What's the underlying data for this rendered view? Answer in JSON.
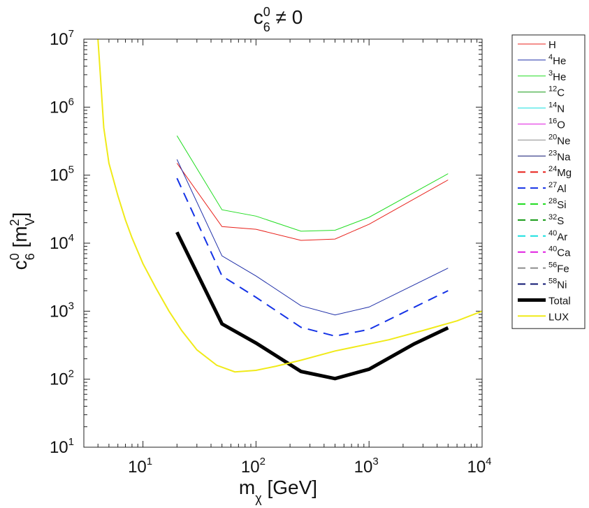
{
  "chart_data": {
    "type": "line",
    "title": {
      "base": "c",
      "sup": "0",
      "sub": "6",
      "tail": " ≠ 0"
    },
    "xlabel": {
      "base": "m",
      "sub": "χ",
      "tail": " [GeV]"
    },
    "ylabel": {
      "base": "c",
      "sup": "0",
      "sub": "6",
      "unit_open": " [m",
      "unit_sup": "2",
      "unit_sub": "V",
      "unit_close": "]"
    },
    "x_scale": "log",
    "y_scale": "log",
    "xlim": [
      3,
      10000
    ],
    "ylim": [
      10,
      10000000
    ],
    "x_ticks": [
      {
        "value": 10,
        "base": "10",
        "exp": "1"
      },
      {
        "value": 100,
        "base": "10",
        "exp": "2"
      },
      {
        "value": 1000,
        "base": "10",
        "exp": "3"
      },
      {
        "value": 10000,
        "base": "10",
        "exp": "4"
      }
    ],
    "y_ticks": [
      {
        "value": 10,
        "base": "10",
        "exp": "1"
      },
      {
        "value": 100,
        "base": "10",
        "exp": "2"
      },
      {
        "value": 1000,
        "base": "10",
        "exp": "3"
      },
      {
        "value": 10000,
        "base": "10",
        "exp": "4"
      },
      {
        "value": 100000,
        "base": "10",
        "exp": "5"
      },
      {
        "value": 1000000,
        "base": "10",
        "exp": "6"
      },
      {
        "value": 10000000,
        "base": "10",
        "exp": "7"
      }
    ],
    "legend_position": "outside-right-top",
    "series": [
      {
        "name": "H",
        "mass": "",
        "color": "#e8211b",
        "style": "solid",
        "width": 1,
        "x": [
          20,
          50,
          100,
          250,
          500,
          1000,
          5000
        ],
        "y": [
          150000,
          17500,
          16000,
          11000,
          11500,
          19000,
          85000
        ]
      },
      {
        "name": "He",
        "mass": "4",
        "color": "#1f2fa8",
        "style": "solid",
        "width": 1,
        "x": [
          20,
          50,
          100,
          250,
          500,
          1000,
          5000
        ],
        "y": [
          170000,
          6500,
          3300,
          1200,
          880,
          1150,
          4300
        ]
      },
      {
        "name": "He",
        "mass": "3",
        "color": "#22dd22",
        "style": "solid",
        "width": 1,
        "x": [
          20,
          50,
          100,
          250,
          500,
          1000,
          5000
        ],
        "y": [
          380000,
          31000,
          25000,
          15000,
          15500,
          24000,
          105000
        ]
      },
      {
        "name": "C",
        "mass": "12",
        "color": "#149a14",
        "style": "solid",
        "width": 1,
        "x": [],
        "y": []
      },
      {
        "name": "N",
        "mass": "14",
        "color": "#19e0e0",
        "style": "solid",
        "width": 1,
        "x": [],
        "y": []
      },
      {
        "name": "O",
        "mass": "16",
        "color": "#e01ee0",
        "style": "solid",
        "width": 1,
        "x": [],
        "y": []
      },
      {
        "name": "Ne",
        "mass": "20",
        "color": "#8c8c8c",
        "style": "solid",
        "width": 1,
        "x": [],
        "y": []
      },
      {
        "name": "Na",
        "mass": "23",
        "color": "#0d1470",
        "style": "solid",
        "width": 1,
        "x": [],
        "y": []
      },
      {
        "name": "Mg",
        "mass": "24",
        "color": "#e8211b",
        "style": "dashed",
        "width": 2,
        "x": [],
        "y": []
      },
      {
        "name": "Al",
        "mass": "27",
        "color": "#1432e6",
        "style": "dashed",
        "width": 2,
        "x": [
          20,
          50,
          100,
          250,
          500,
          1000,
          5000
        ],
        "y": [
          90000,
          3300,
          1600,
          580,
          430,
          540,
          2000
        ]
      },
      {
        "name": "Si",
        "mass": "28",
        "color": "#22dd22",
        "style": "dashed",
        "width": 2,
        "x": [],
        "y": []
      },
      {
        "name": "S",
        "mass": "32",
        "color": "#149a14",
        "style": "dashed",
        "width": 2,
        "x": [],
        "y": []
      },
      {
        "name": "Ar",
        "mass": "40",
        "color": "#19e0e0",
        "style": "dashed",
        "width": 2,
        "x": [],
        "y": []
      },
      {
        "name": "Ca",
        "mass": "40",
        "color": "#e01ee0",
        "style": "dashed",
        "width": 2,
        "x": [],
        "y": []
      },
      {
        "name": "Fe",
        "mass": "56",
        "color": "#8c8c8c",
        "style": "dashed",
        "width": 2,
        "x": [],
        "y": []
      },
      {
        "name": "Ni",
        "mass": "58",
        "color": "#0d1470",
        "style": "dashed",
        "width": 2,
        "x": [],
        "y": []
      },
      {
        "name": "Total",
        "mass": "",
        "color": "#000000",
        "style": "solid",
        "width": 5,
        "x": [
          20,
          50,
          100,
          250,
          500,
          1000,
          2500,
          5000
        ],
        "y": [
          14500,
          650,
          340,
          130,
          102,
          140,
          330,
          570
        ]
      },
      {
        "name": "LUX",
        "mass": "",
        "color": "#f0ea18",
        "style": "solid",
        "width": 2,
        "x": [
          4,
          4.2,
          4.5,
          5,
          6,
          7,
          8,
          10,
          13,
          17,
          22,
          30,
          45,
          65,
          100,
          150,
          250,
          500,
          1000,
          1500,
          3000,
          6000,
          10000
        ],
        "y": [
          10000000,
          3000000,
          500000,
          150000,
          50000,
          22000,
          12000,
          5000,
          2200,
          1000,
          520,
          270,
          160,
          128,
          135,
          155,
          190,
          260,
          330,
          380,
          520,
          720,
          1000
        ]
      }
    ]
  }
}
